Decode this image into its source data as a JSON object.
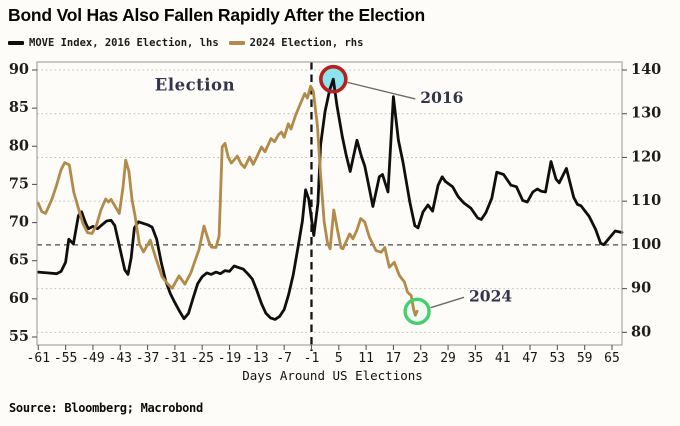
{
  "title": "Bond Vol Has Also Fallen Rapidly After the Election",
  "source": "Source: Bloomberg; Macrobond",
  "legend": [
    {
      "label": "MOVE Index, 2016 Election, lhs",
      "color": "#0f0f0f"
    },
    {
      "label": "2024 Election, rhs",
      "color": "#b28a49"
    }
  ],
  "chart_data": {
    "type": "line",
    "title": "Bond Vol Has Also Fallen Rapidly After the Election",
    "xlabel": "Days Around US Elections",
    "x_axis": {
      "ticks": [
        -61,
        -55,
        -49,
        -43,
        -37,
        -31,
        -25,
        -19,
        -13,
        -7,
        -1,
        5,
        11,
        17,
        23,
        29,
        35,
        41,
        47,
        53,
        59,
        65
      ],
      "range": [
        -61.4,
        67.6
      ]
    },
    "left_axis": {
      "ticks": [
        90,
        85,
        80,
        75,
        70,
        65,
        60,
        55
      ],
      "range": [
        53.9,
        91.1
      ]
    },
    "right_axis": {
      "ticks": [
        140,
        130,
        120,
        110,
        100,
        90,
        80
      ],
      "range": [
        77.1,
        141.8
      ]
    },
    "grid": "dotted-right-axis",
    "reference_lines": {
      "vertical_at_day": -1,
      "horizontal_right_value": 100
    },
    "series": [
      {
        "name": "MOVE Index, 2016 Election, lhs",
        "axis": "left",
        "color": "#0f0f0f",
        "width": 2.8,
        "points": [
          [
            -61,
            63.5
          ],
          [
            -59,
            63.4
          ],
          [
            -57,
            63.3
          ],
          [
            -56,
            63.6
          ],
          [
            -55,
            64.8
          ],
          [
            -54.3,
            67.8
          ],
          [
            -53.3,
            67.2
          ],
          [
            -52.2,
            70.9
          ],
          [
            -51.5,
            71.4
          ],
          [
            -50.6,
            69.9
          ],
          [
            -50,
            69.2
          ],
          [
            -49,
            69.5
          ],
          [
            -48,
            69.2
          ],
          [
            -47,
            69.7
          ],
          [
            -46,
            70.2
          ],
          [
            -45,
            70.3
          ],
          [
            -44.2,
            69.6
          ],
          [
            -43,
            66.4
          ],
          [
            -42,
            63.8
          ],
          [
            -41.3,
            63.2
          ],
          [
            -40.6,
            65.4
          ],
          [
            -39.9,
            69.3
          ],
          [
            -39,
            70.1
          ],
          [
            -38,
            69.9
          ],
          [
            -37,
            69.7
          ],
          [
            -36,
            69.4
          ],
          [
            -35,
            67.8
          ],
          [
            -34,
            64.8
          ],
          [
            -33,
            62.3
          ],
          [
            -32,
            60.7
          ],
          [
            -31,
            59.5
          ],
          [
            -30,
            58.4
          ],
          [
            -29,
            57.4
          ],
          [
            -28,
            58.1
          ],
          [
            -27,
            60.1
          ],
          [
            -26,
            62.0
          ],
          [
            -25,
            62.9
          ],
          [
            -24,
            63.4
          ],
          [
            -23,
            63.2
          ],
          [
            -22,
            63.5
          ],
          [
            -21,
            63.3
          ],
          [
            -20,
            63.7
          ],
          [
            -19,
            63.6
          ],
          [
            -18,
            64.3
          ],
          [
            -17,
            64.1
          ],
          [
            -16,
            63.9
          ],
          [
            -15,
            63.3
          ],
          [
            -14,
            62.6
          ],
          [
            -13,
            61.1
          ],
          [
            -12,
            59.4
          ],
          [
            -11,
            58.1
          ],
          [
            -10,
            57.5
          ],
          [
            -9,
            57.3
          ],
          [
            -8,
            57.7
          ],
          [
            -7,
            58.6
          ],
          [
            -6,
            60.6
          ],
          [
            -5,
            63.2
          ],
          [
            -4,
            66.6
          ],
          [
            -3,
            70.2
          ],
          [
            -2.3,
            74.3
          ],
          [
            -1.6,
            73.1
          ],
          [
            -0.5,
            68.3
          ],
          [
            0.4,
            72.5
          ],
          [
            1,
            80.2
          ],
          [
            2,
            84.6
          ],
          [
            3,
            87.4
          ],
          [
            3.8,
            88.8
          ],
          [
            4.6,
            85.3
          ],
          [
            5.8,
            81.2
          ],
          [
            6.6,
            78.9
          ],
          [
            7.5,
            76.7
          ],
          [
            9,
            80.8
          ],
          [
            10,
            78.6
          ],
          [
            10.7,
            77.4
          ],
          [
            11.6,
            74.8
          ],
          [
            12.5,
            72.1
          ],
          [
            13.9,
            76.0
          ],
          [
            14.6,
            76.3
          ],
          [
            15.8,
            74.0
          ],
          [
            17,
            86.5
          ],
          [
            18.1,
            80.8
          ],
          [
            19.1,
            77.9
          ],
          [
            20.6,
            72.7
          ],
          [
            21.7,
            69.6
          ],
          [
            22.4,
            69.3
          ],
          [
            23.5,
            71.4
          ],
          [
            24.6,
            72.3
          ],
          [
            25.6,
            71.5
          ],
          [
            26.8,
            74.9
          ],
          [
            27.7,
            76.0
          ],
          [
            28.4,
            75.4
          ],
          [
            30,
            74.7
          ],
          [
            31.2,
            73.4
          ],
          [
            32.4,
            72.6
          ],
          [
            34,
            71.9
          ],
          [
            35.5,
            70.6
          ],
          [
            36.3,
            70.4
          ],
          [
            37.3,
            71.3
          ],
          [
            38.6,
            73.2
          ],
          [
            39.7,
            76.6
          ],
          [
            41.2,
            76.3
          ],
          [
            42.8,
            74.9
          ],
          [
            44,
            74.7
          ],
          [
            45.4,
            72.9
          ],
          [
            46.4,
            72.7
          ],
          [
            47.6,
            74.0
          ],
          [
            48.6,
            74.4
          ],
          [
            49.5,
            74.1
          ],
          [
            50.4,
            74.0
          ],
          [
            51.6,
            78.0
          ],
          [
            52.7,
            75.7
          ],
          [
            53.4,
            75.2
          ],
          [
            55,
            77.1
          ],
          [
            56.6,
            73.3
          ],
          [
            57.4,
            72.4
          ],
          [
            58.2,
            72.2
          ],
          [
            60,
            70.8
          ],
          [
            61.4,
            69.1
          ],
          [
            62.5,
            67.3
          ],
          [
            63.2,
            67.1
          ],
          [
            64.3,
            67.9
          ],
          [
            65.7,
            68.9
          ],
          [
            67.2,
            68.7
          ]
        ]
      },
      {
        "name": "2024 Election, rhs",
        "axis": "right",
        "color": "#b28a49",
        "width": 2.8,
        "points": [
          [
            -61,
            109.5
          ],
          [
            -60.2,
            107.6
          ],
          [
            -59.4,
            107.2
          ],
          [
            -58,
            110.5
          ],
          [
            -57,
            113.6
          ],
          [
            -56,
            117.2
          ],
          [
            -55.2,
            118.8
          ],
          [
            -54.2,
            118.3
          ],
          [
            -53.2,
            112.0
          ],
          [
            -52.2,
            108.4
          ],
          [
            -51.2,
            104.9
          ],
          [
            -50.2,
            102.8
          ],
          [
            -49.2,
            102.6
          ],
          [
            -48.2,
            104.6
          ],
          [
            -47.2,
            108.1
          ],
          [
            -46.2,
            110.5
          ],
          [
            -45.6,
            109.8
          ],
          [
            -45,
            110.4
          ],
          [
            -44,
            108.6
          ],
          [
            -43.2,
            107.2
          ],
          [
            -42.4,
            113.2
          ],
          [
            -41.8,
            119.4
          ],
          [
            -41.1,
            116.8
          ],
          [
            -40.4,
            110.2
          ],
          [
            -39.8,
            107.0
          ],
          [
            -38.8,
            100.2
          ],
          [
            -37.9,
            98.4
          ],
          [
            -36.4,
            101.1
          ],
          [
            -35.2,
            97.0
          ],
          [
            -33.8,
            92.7
          ],
          [
            -32.6,
            91.1
          ],
          [
            -31.6,
            90.1
          ],
          [
            -30.1,
            92.9
          ],
          [
            -28.8,
            91.0
          ],
          [
            -27.5,
            93.6
          ],
          [
            -26.5,
            96.6
          ],
          [
            -25.7,
            98.9
          ],
          [
            -24.6,
            104.3
          ],
          [
            -23.6,
            100.9
          ],
          [
            -23,
            99.5
          ],
          [
            -22,
            99.4
          ],
          [
            -21.3,
            102.0
          ],
          [
            -20.6,
            122.4
          ],
          [
            -20,
            123.2
          ],
          [
            -19.3,
            120.1
          ],
          [
            -18.6,
            118.7
          ],
          [
            -17.3,
            120.3
          ],
          [
            -16.5,
            118.6
          ],
          [
            -15.7,
            117.7
          ],
          [
            -14.6,
            120.1
          ],
          [
            -13.8,
            118.4
          ],
          [
            -13,
            120.1
          ],
          [
            -12,
            122.4
          ],
          [
            -11.2,
            121.3
          ],
          [
            -9.9,
            124.3
          ],
          [
            -9.1,
            123.6
          ],
          [
            -8.2,
            125.3
          ],
          [
            -7.6,
            125.8
          ],
          [
            -7,
            124.6
          ],
          [
            -6.1,
            127.7
          ],
          [
            -5.5,
            126.5
          ],
          [
            -4.5,
            129.6
          ],
          [
            -3.5,
            132.1
          ],
          [
            -2.5,
            134.6
          ],
          [
            -1.9,
            133.6
          ],
          [
            -1.2,
            136.3
          ],
          [
            -0.6,
            135.1
          ],
          [
            0.3,
            127.3
          ],
          [
            1,
            115.9
          ],
          [
            1.8,
            105.2
          ],
          [
            2.5,
            100.6
          ],
          [
            3.1,
            99.1
          ],
          [
            3.9,
            108.0
          ],
          [
            4.8,
            102.9
          ],
          [
            5.5,
            99.3
          ],
          [
            5.9,
            99.1
          ],
          [
            6.9,
            101.4
          ],
          [
            7.4,
            102.5
          ],
          [
            8.1,
            101.4
          ],
          [
            9,
            103.4
          ],
          [
            9.8,
            106.0
          ],
          [
            10.7,
            105.2
          ],
          [
            11.7,
            101.8
          ],
          [
            12.5,
            100.1
          ],
          [
            13.2,
            98.7
          ],
          [
            14.3,
            98.3
          ],
          [
            15.1,
            99.4
          ],
          [
            16.1,
            94.9
          ],
          [
            17.2,
            96.0
          ],
          [
            18.3,
            93.0
          ],
          [
            19.4,
            91.5
          ],
          [
            20.1,
            89.2
          ],
          [
            20.9,
            88.4
          ],
          [
            21.4,
            85.4
          ],
          [
            21.8,
            83.9
          ],
          [
            22.2,
            84.8
          ]
        ]
      }
    ],
    "annotations": {
      "election_label": {
        "text": "Election",
        "day": -26.6,
        "value": 87.9,
        "axis": "left",
        "font_size": 16.5,
        "color": "#23242e"
      },
      "a2016": {
        "text": "2016",
        "circle": {
          "day": 3.8,
          "value": 88.8,
          "axis": "left",
          "radius": 12.5,
          "ring_color": "#b6201e",
          "ring_width": 3.6,
          "fill": "#8ee4ee"
        },
        "label_at": {
          "day": 22.9,
          "value": 86.2,
          "axis": "left"
        },
        "font_size": 15.5
      },
      "a2024": {
        "text": "2024",
        "circle": {
          "day": 22.2,
          "value": 84.8,
          "axis": "right",
          "radius": 12,
          "ring_color": "#44cf6c",
          "ring_width": 3.4,
          "fill": "#effbf4"
        },
        "label_at": {
          "day": 33.6,
          "value": 88.0,
          "axis": "right"
        },
        "font_size": 15.5
      }
    }
  }
}
